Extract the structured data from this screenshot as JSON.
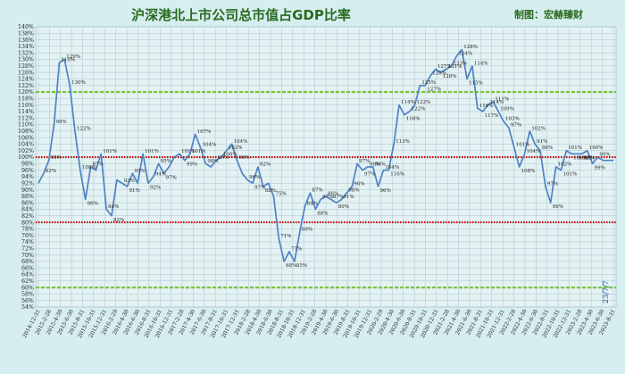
{
  "title": "沪深港北上市公司总市值占GDP比率",
  "credit": "制图：宏赫臻财",
  "date_stamp": "23/7/7",
  "colors": {
    "background": "#d7eef0",
    "plot_bg": "#e4f2f4",
    "line": "#4f82c4",
    "red_line": "#c00000",
    "green_line": "#7ac63b",
    "title": "#2a6b1f"
  },
  "chart_data": {
    "type": "line",
    "title": "沪深港北上市公司总市值占GDP比率",
    "ylim": [
      54,
      140
    ],
    "ytick_step": 2,
    "ytick_suffix": "%",
    "grid": true,
    "reference_lines": [
      {
        "value": 120,
        "color": "#7ac63b",
        "style": "dashed"
      },
      {
        "value": 100,
        "color": "#c00000",
        "style": "dotted"
      },
      {
        "value": 80,
        "color": "#c00000",
        "style": "dotted"
      },
      {
        "value": 60,
        "color": "#7ac63b",
        "style": "dashed"
      }
    ],
    "x_ticks": [
      "2014-12-31",
      "2015-2-28",
      "2015-4-30",
      "2015-6-30",
      "2015-8-31",
      "2015-10-31",
      "2015-12-31",
      "2016-2-29",
      "2016-4-30",
      "2016-6-30",
      "2016-8-31",
      "2016-10-31",
      "2016-12-31",
      "2017-2-28",
      "2017-4-30",
      "2017-6-30",
      "2017-8-31",
      "2017-10-31",
      "2017-12-31",
      "2018-2-28",
      "2018-4-30",
      "2018-6-30",
      "2018-8-31",
      "2018-10-31",
      "2018-12-31",
      "2019-2-28",
      "2019-4-30",
      "2019-6-30",
      "2019-8-31",
      "2019-10-31",
      "2019-12-31",
      "2020-2-29",
      "2020-4-30",
      "2020-6-30",
      "2020-8-31",
      "2020-10-31",
      "2020-12-31",
      "2021-2-28",
      "2021-4-30",
      "2021-6-30",
      "2021-8-31",
      "2021-10-31",
      "2021-12-31",
      "2022-2-28",
      "2022-4-30",
      "2022-6-30",
      "2022-8-31",
      "2022-10-31",
      "2022-12-31",
      "2023-2-28",
      "2023-4-30",
      "2023-6-30",
      "2023-8-31"
    ],
    "series": [
      {
        "values": [
          92,
          95,
          99,
          110,
          129,
          130,
          122,
          108,
          96,
          87,
          97,
          96,
          101,
          84,
          82,
          93,
          92,
          91,
          95,
          92,
          101,
          92,
          94,
          98,
          95,
          97,
          100,
          101,
          99,
          101,
          107,
          103,
          98,
          97,
          99,
          100,
          102,
          104,
          99,
          95,
          93,
          92,
          97,
          91,
          92,
          88,
          75,
          68,
          71,
          68,
          77,
          85,
          89,
          84,
          87,
          88,
          87,
          86,
          87,
          89,
          91,
          98,
          96,
          97,
          97,
          91,
          96,
          96,
          104,
          116,
          113,
          114,
          116,
          122,
          122,
          125,
          127,
          126,
          127,
          128,
          131,
          133,
          124,
          128,
          115,
          114,
          116,
          117,
          114,
          111,
          109,
          103,
          97,
          101,
          108,
          104,
          102,
          91,
          86,
          97,
          96,
          102,
          101,
          101,
          101,
          102,
          98,
          100,
          99,
          99,
          99
        ]
      }
    ],
    "data_labels": [
      {
        "i": 1,
        "text": "92%"
      },
      {
        "i": 2,
        "text": "95%"
      },
      {
        "i": 3,
        "text": "99%"
      },
      {
        "i": 4,
        "text": "110%"
      },
      {
        "i": 5,
        "text": "129%"
      },
      {
        "i": 6,
        "text": "130%"
      },
      {
        "i": 7,
        "text": "122%"
      },
      {
        "i": 8,
        "text": "108%"
      },
      {
        "i": 9,
        "text": "96%"
      },
      {
        "i": 10,
        "text": "87%"
      },
      {
        "i": 12,
        "text": "101%"
      },
      {
        "i": 13,
        "text": "84%"
      },
      {
        "i": 14,
        "text": "82%"
      },
      {
        "i": 16,
        "text": "93%"
      },
      {
        "i": 17,
        "text": "91%"
      },
      {
        "i": 18,
        "text": "95%"
      },
      {
        "i": 20,
        "text": "101%"
      },
      {
        "i": 21,
        "text": "92%"
      },
      {
        "i": 22,
        "text": "94%"
      },
      {
        "i": 23,
        "text": "95%"
      },
      {
        "i": 24,
        "text": "97%"
      },
      {
        "i": 27,
        "text": "101%"
      },
      {
        "i": 28,
        "text": "99%"
      },
      {
        "i": 29,
        "text": "101%"
      },
      {
        "i": 30,
        "text": "107%"
      },
      {
        "i": 31,
        "text": "104%"
      },
      {
        "i": 32,
        "text": "98%"
      },
      {
        "i": 34,
        "text": "99%"
      },
      {
        "i": 35,
        "text": "100%"
      },
      {
        "i": 36,
        "text": "102%"
      },
      {
        "i": 37,
        "text": "104%"
      },
      {
        "i": 38,
        "text": "99%"
      },
      {
        "i": 40,
        "text": "96%"
      },
      {
        "i": 41,
        "text": "97%"
      },
      {
        "i": 42,
        "text": "92%"
      },
      {
        "i": 43,
        "text": "88%"
      },
      {
        "i": 45,
        "text": "75%"
      },
      {
        "i": 46,
        "text": "71%"
      },
      {
        "i": 47,
        "text": "68%"
      },
      {
        "i": 48,
        "text": "77%"
      },
      {
        "i": 49,
        "text": "85%"
      },
      {
        "i": 50,
        "text": "89%"
      },
      {
        "i": 51,
        "text": "84%"
      },
      {
        "i": 52,
        "text": "87%"
      },
      {
        "i": 53,
        "text": "88%"
      },
      {
        "i": 54,
        "text": "87%"
      },
      {
        "i": 55,
        "text": "86%"
      },
      {
        "i": 56,
        "text": "87%"
      },
      {
        "i": 57,
        "text": "89%"
      },
      {
        "i": 58,
        "text": "91%"
      },
      {
        "i": 59,
        "text": "98%"
      },
      {
        "i": 60,
        "text": "96%"
      },
      {
        "i": 61,
        "text": "97%"
      },
      {
        "i": 62,
        "text": "97%"
      },
      {
        "i": 63,
        "text": "90%"
      },
      {
        "i": 64,
        "text": "96%"
      },
      {
        "i": 65,
        "text": "96%"
      },
      {
        "i": 66,
        "text": "104%"
      },
      {
        "i": 67,
        "text": "116%"
      },
      {
        "i": 68,
        "text": "113%"
      },
      {
        "i": 69,
        "text": "114%"
      },
      {
        "i": 70,
        "text": "116%"
      },
      {
        "i": 71,
        "text": "122%"
      },
      {
        "i": 72,
        "text": "122%"
      },
      {
        "i": 73,
        "text": "125%"
      },
      {
        "i": 74,
        "text": "127%"
      },
      {
        "i": 75,
        "text": "126%"
      },
      {
        "i": 76,
        "text": "127%"
      },
      {
        "i": 77,
        "text": "128%"
      },
      {
        "i": 78,
        "text": "131%"
      },
      {
        "i": 79,
        "text": "133%"
      },
      {
        "i": 80,
        "text": "124%"
      },
      {
        "i": 81,
        "text": "128%"
      },
      {
        "i": 82,
        "text": "115%"
      },
      {
        "i": 83,
        "text": "114%"
      },
      {
        "i": 84,
        "text": "116%"
      },
      {
        "i": 85,
        "text": "117%"
      },
      {
        "i": 86,
        "text": "114%"
      },
      {
        "i": 87,
        "text": "111%"
      },
      {
        "i": 88,
        "text": "109%"
      },
      {
        "i": 89,
        "text": "103%"
      },
      {
        "i": 90,
        "text": "97%"
      },
      {
        "i": 91,
        "text": "101%"
      },
      {
        "i": 92,
        "text": "108%"
      },
      {
        "i": 93,
        "text": "104%"
      },
      {
        "i": 94,
        "text": "102%"
      },
      {
        "i": 95,
        "text": "91%"
      },
      {
        "i": 96,
        "text": "86%"
      },
      {
        "i": 97,
        "text": "97%"
      },
      {
        "i": 98,
        "text": "96%"
      },
      {
        "i": 99,
        "text": "102%"
      },
      {
        "i": 100,
        "text": "101%"
      },
      {
        "i": 101,
        "text": "101%"
      },
      {
        "i": 102,
        "text": "101%"
      },
      {
        "i": 103,
        "text": "102%"
      },
      {
        "i": 104,
        "text": "98%"
      },
      {
        "i": 105,
        "text": "100%"
      },
      {
        "i": 106,
        "text": "99%"
      },
      {
        "i": 107,
        "text": "99%"
      }
    ]
  }
}
